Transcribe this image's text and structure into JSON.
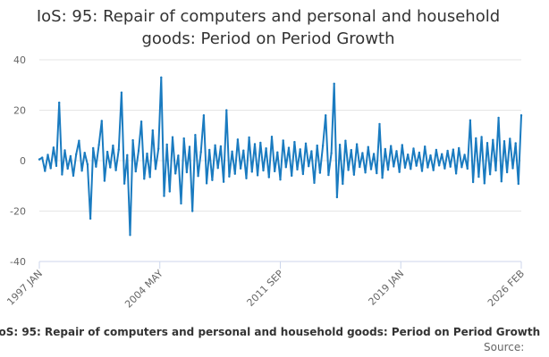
{
  "title_line1": "IoS: 95: Repair of computers and personal and household",
  "title_line2": "goods: Period on Period Growth",
  "caption": "IoS: 95: Repair of computers and personal and household goods: Period on Period Growth",
  "source_label": "Source:",
  "colors": {
    "series": "#1a7bc0",
    "grid": "#e6e6e6",
    "axis": "#ccd6eb",
    "text": "#666666"
  },
  "chart_data": {
    "type": "line",
    "title": "IoS: 95: Repair of computers and personal and household goods: Period on Period Growth",
    "xlabel": "",
    "ylabel": "",
    "ylim": [
      -40,
      40
    ],
    "yticks": [
      "40",
      "20",
      "0",
      "-20",
      "-40"
    ],
    "xtick_labels": [
      "1997 JAN",
      "2004 MAY",
      "2011 SEP",
      "2019 JAN",
      "2026 FEB"
    ],
    "x_range": [
      "1997-01",
      "2026-02"
    ],
    "grid": true,
    "legend": "none",
    "series": [
      {
        "values": [
          0.5,
          1.2,
          -4.1,
          2.3,
          -3.0,
          5.2,
          -2.1,
          23.0,
          -5.5,
          4.1,
          -3.2,
          1.8,
          -6.0,
          2.5,
          7.9,
          -4.0,
          3.1,
          -1.5,
          -23.0,
          5.0,
          -2.4,
          6.2,
          15.8,
          -8.0,
          3.5,
          -2.7,
          6.0,
          -3.8,
          4.4,
          27.0,
          -9.1,
          2.2,
          -29.5,
          8.1,
          -4.3,
          3.9,
          15.5,
          -7.2,
          2.8,
          -6.5,
          12.0,
          -3.3,
          4.7,
          33.0,
          -14.0,
          6.4,
          -12.2,
          9.3,
          -5.1,
          2.0,
          -17.0,
          8.8,
          -4.6,
          5.5,
          -20.0,
          10.2,
          -6.1,
          3.4,
          18.0,
          -9.0,
          4.3,
          -7.7,
          6.1,
          -2.9,
          5.7,
          -8.4,
          20.0,
          -6.3,
          3.6,
          -5.2,
          8.4,
          -3.1,
          4.0,
          -7.0,
          9.2,
          -4.4,
          6.6,
          -5.8,
          7.1,
          -3.9,
          4.9,
          -6.6,
          9.5,
          -4.2,
          3.3,
          -7.5,
          8.0,
          -2.6,
          5.1,
          -6.0,
          7.4,
          -3.5,
          4.5,
          -5.3,
          6.8,
          -2.2,
          3.7,
          -8.8,
          6.0,
          -4.8,
          5.9,
          18.0,
          -5.7,
          2.9,
          30.5,
          -14.5,
          6.3,
          -9.2,
          7.9,
          -3.7,
          4.2,
          -5.6,
          6.5,
          -2.5,
          3.0,
          -4.7,
          5.4,
          -3.4,
          2.7,
          -5.0,
          14.5,
          -6.8,
          4.6,
          -3.6,
          5.8,
          -2.3,
          3.8,
          -4.5,
          6.2,
          -2.8,
          2.4,
          -3.3,
          4.8,
          -2.0,
          3.2,
          -4.1,
          5.6,
          -2.7,
          2.1,
          -3.8,
          4.3,
          -1.9,
          2.6,
          -3.1,
          3.9,
          -2.4,
          4.4,
          -5.1,
          5.0,
          -2.6,
          2.3,
          -3.2,
          16.0,
          -8.5,
          8.9,
          -6.4,
          9.4,
          -9.0,
          7.0,
          -5.4,
          8.2,
          -3.9,
          17.0,
          -8.2,
          7.7,
          -4.6,
          8.7,
          -3.0,
          6.9,
          -9.2,
          18.0
        ]
      }
    ]
  }
}
